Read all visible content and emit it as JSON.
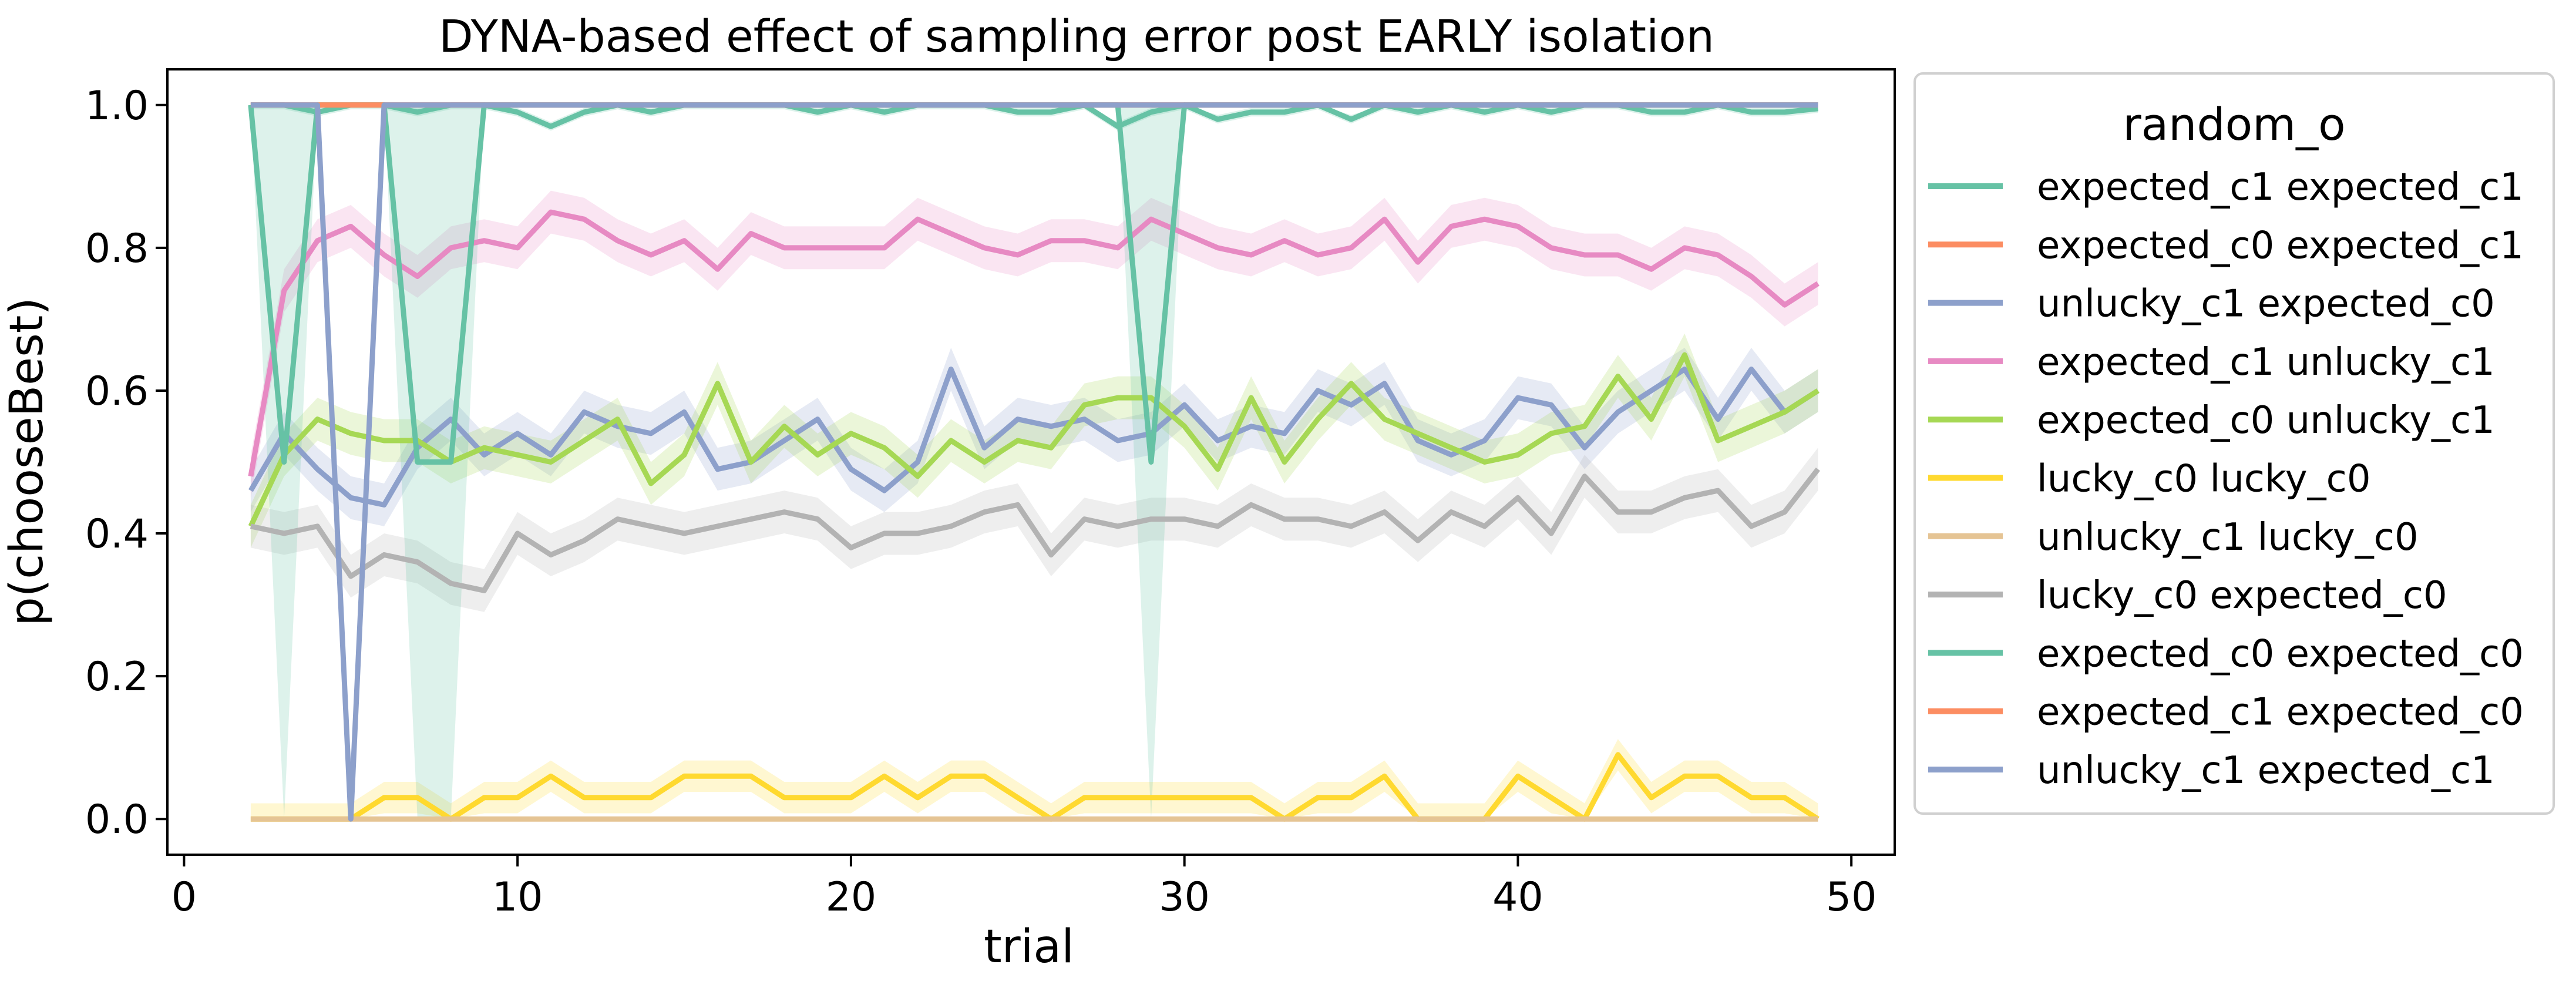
{
  "chart_data": {
    "type": "line",
    "title": "DYNA-based effect of sampling error post EARLY isolation",
    "xlabel": "trial",
    "ylabel": "p(chooseBest)",
    "xlim": [
      -0.5,
      51.3
    ],
    "ylim": [
      -0.05,
      1.05
    ],
    "xticks": [
      "0",
      "10",
      "20",
      "30",
      "40",
      "50"
    ],
    "yticks": [
      "0.0",
      "0.2",
      "0.4",
      "0.6",
      "0.8",
      "1.0"
    ],
    "grid": false,
    "legend": {
      "title": "random_o",
      "placement": "outside-right"
    },
    "x": [
      2,
      3,
      4,
      5,
      6,
      7,
      8,
      9,
      10,
      11,
      12,
      13,
      14,
      15,
      16,
      17,
      18,
      19,
      20,
      21,
      22,
      23,
      24,
      25,
      26,
      27,
      28,
      29,
      30,
      31,
      32,
      33,
      34,
      35,
      36,
      37,
      38,
      39,
      40,
      41,
      42,
      43,
      44,
      45,
      46,
      47,
      48,
      49
    ],
    "series": [
      {
        "name": "expected_c1 expected_c1",
        "color": "#66c2a5",
        "values": [
          1,
          1,
          0.99,
          1,
          1,
          0.99,
          1,
          1,
          0.99,
          0.97,
          0.99,
          1,
          0.99,
          1,
          1,
          1,
          1,
          0.99,
          1,
          0.99,
          1,
          1,
          1,
          0.99,
          0.99,
          1,
          0.97,
          0.99,
          1,
          0.98,
          0.99,
          0.99,
          1,
          0.98,
          1,
          0.99,
          1,
          0.99,
          1,
          0.99,
          1,
          1,
          0.99,
          0.99,
          1,
          0.99,
          0.99,
          0.995
        ]
      },
      {
        "name": "expected_c0 expected_c1",
        "color": "#fc8d62",
        "values": [
          1,
          1,
          1,
          1,
          1,
          1,
          1,
          1,
          1,
          1,
          1,
          1,
          1,
          1,
          1,
          1,
          1,
          1,
          1,
          1,
          1,
          1,
          1,
          1,
          1,
          1,
          1,
          1,
          1,
          1,
          1,
          1,
          1,
          1,
          1,
          1,
          1,
          1,
          1,
          1,
          1,
          1,
          1,
          1,
          1,
          1,
          1,
          1
        ]
      },
      {
        "name": "unlucky_c1 expected_c0",
        "color": "#8da0cb",
        "values": [
          0.46,
          0.54,
          0.49,
          0.45,
          0.44,
          0.52,
          0.56,
          0.51,
          0.54,
          0.51,
          0.57,
          0.55,
          0.54,
          0.57,
          0.49,
          0.5,
          0.53,
          0.56,
          0.49,
          0.46,
          0.5,
          0.63,
          0.52,
          0.56,
          0.55,
          0.56,
          0.53,
          0.54,
          0.58,
          0.53,
          0.55,
          0.54,
          0.6,
          0.58,
          0.61,
          0.53,
          0.51,
          0.53,
          0.59,
          0.58,
          0.52,
          0.57,
          0.6,
          0.63,
          0.56,
          0.63,
          0.57,
          0.6
        ]
      },
      {
        "name": "expected_c1 unlucky_c1",
        "color": "#e78ac3",
        "values": [
          0.48,
          0.74,
          0.81,
          0.83,
          0.79,
          0.76,
          0.8,
          0.81,
          0.8,
          0.85,
          0.84,
          0.81,
          0.79,
          0.81,
          0.77,
          0.82,
          0.8,
          0.8,
          0.8,
          0.8,
          0.84,
          0.82,
          0.8,
          0.79,
          0.81,
          0.81,
          0.8,
          0.84,
          0.82,
          0.8,
          0.79,
          0.81,
          0.79,
          0.8,
          0.84,
          0.78,
          0.83,
          0.84,
          0.83,
          0.8,
          0.79,
          0.79,
          0.77,
          0.8,
          0.79,
          0.76,
          0.72,
          0.75
        ]
      },
      {
        "name": "expected_c0 unlucky_c1",
        "color": "#a6d854",
        "values": [
          0.41,
          0.51,
          0.56,
          0.54,
          0.53,
          0.53,
          0.5,
          0.52,
          0.51,
          0.5,
          0.53,
          0.56,
          0.47,
          0.51,
          0.61,
          0.5,
          0.55,
          0.51,
          0.54,
          0.52,
          0.48,
          0.53,
          0.5,
          0.53,
          0.52,
          0.58,
          0.59,
          0.59,
          0.55,
          0.49,
          0.59,
          0.5,
          0.56,
          0.61,
          0.56,
          0.54,
          0.52,
          0.5,
          0.51,
          0.54,
          0.55,
          0.62,
          0.56,
          0.65,
          0.53,
          0.55,
          0.57,
          0.6
        ]
      },
      {
        "name": "lucky_c0 lucky_c0",
        "color": "#ffd92f",
        "values": [
          0,
          0,
          0,
          0,
          0.03,
          0.03,
          0,
          0.03,
          0.03,
          0.06,
          0.03,
          0.03,
          0.03,
          0.06,
          0.06,
          0.06,
          0.03,
          0.03,
          0.03,
          0.06,
          0.03,
          0.06,
          0.06,
          0.03,
          0,
          0.03,
          0.03,
          0.03,
          0.03,
          0.03,
          0.03,
          0,
          0.03,
          0.03,
          0.06,
          0,
          0,
          0,
          0.06,
          0.03,
          0,
          0.09,
          0.03,
          0.06,
          0.06,
          0.03,
          0.03,
          0
        ]
      },
      {
        "name": "unlucky_c1 lucky_c0",
        "color": "#e5c494",
        "values": [
          0,
          0,
          0,
          0,
          0,
          0,
          0,
          0,
          0,
          0,
          0,
          0,
          0,
          0,
          0,
          0,
          0,
          0,
          0,
          0,
          0,
          0,
          0,
          0,
          0,
          0,
          0,
          0,
          0,
          0,
          0,
          0,
          0,
          0,
          0,
          0,
          0,
          0,
          0,
          0,
          0,
          0,
          0,
          0,
          0,
          0,
          0,
          0
        ]
      },
      {
        "name": "lucky_c0 expected_c0",
        "color": "#b3b3b3",
        "values": [
          0.41,
          0.4,
          0.41,
          0.34,
          0.37,
          0.36,
          0.33,
          0.32,
          0.4,
          0.37,
          0.39,
          0.42,
          0.41,
          0.4,
          0.41,
          0.42,
          0.43,
          0.42,
          0.38,
          0.4,
          0.4,
          0.41,
          0.43,
          0.44,
          0.37,
          0.42,
          0.41,
          0.42,
          0.42,
          0.41,
          0.44,
          0.42,
          0.42,
          0.41,
          0.43,
          0.39,
          0.43,
          0.41,
          0.45,
          0.4,
          0.48,
          0.43,
          0.43,
          0.45,
          0.46,
          0.41,
          0.43,
          0.49
        ]
      },
      {
        "name": "expected_c0 expected_c0",
        "color": "#66c2a5",
        "values": [
          1,
          0.5,
          1,
          1,
          1,
          0.5,
          0.5,
          1,
          1,
          1,
          1,
          1,
          1,
          1,
          1,
          1,
          1,
          1,
          1,
          1,
          1,
          1,
          1,
          1,
          1,
          1,
          1,
          0.5,
          1,
          1,
          1,
          1,
          1,
          1,
          1,
          1,
          1,
          1,
          1,
          1,
          1,
          1,
          1,
          1,
          1,
          1,
          1,
          1
        ]
      },
      {
        "name": "expected_c1 expected_c0",
        "color": "#fc8d62",
        "values": [
          1,
          1,
          1,
          1,
          1,
          1,
          1,
          1,
          1,
          1,
          1,
          1,
          1,
          1,
          1,
          1,
          1,
          1,
          1,
          1,
          1,
          1,
          1,
          1,
          1,
          1,
          1,
          1,
          1,
          1,
          1,
          1,
          1,
          1,
          1,
          1,
          1,
          1,
          1,
          1,
          1,
          1,
          1,
          1,
          1,
          1,
          1,
          1
        ]
      },
      {
        "name": "unlucky_c1 expected_c1",
        "color": "#8da0cb",
        "values": [
          1,
          1,
          1,
          0,
          1,
          1,
          1,
          1,
          1,
          1,
          1,
          1,
          1,
          1,
          1,
          1,
          1,
          1,
          1,
          1,
          1,
          1,
          1,
          1,
          1,
          1,
          1,
          1,
          1,
          1,
          1,
          1,
          1,
          1,
          1,
          1,
          1,
          1,
          1,
          1,
          1,
          1,
          1,
          1,
          1,
          1,
          1,
          1
        ]
      }
    ]
  }
}
